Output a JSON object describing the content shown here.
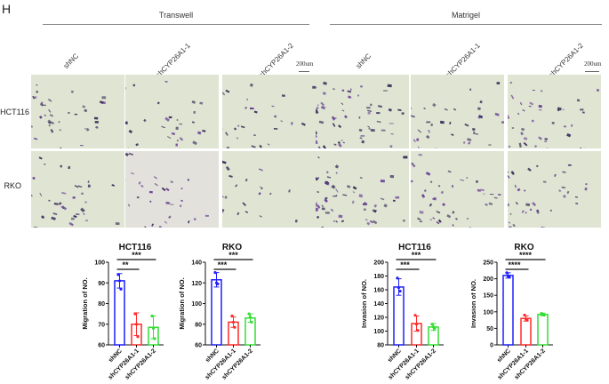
{
  "panel_letter": "H",
  "figure": {
    "sections": [
      {
        "title": "Transwell",
        "columns": [
          "shNC",
          "shCYP26A1-1",
          "shCYP26A1-2"
        ],
        "scale_bar": "200um"
      },
      {
        "title": "Matrigel",
        "columns": [
          "shNC",
          "shCYP26A1-1",
          "shCYP26A1-2"
        ],
        "scale_bar": "200um"
      }
    ],
    "rows": [
      "HCT116",
      "RKO"
    ],
    "stain_colors": {
      "background": "#dfe5d2",
      "cell_dark": "#3b2f5c",
      "cell_purple": "#6a3f96"
    }
  },
  "chart_data": [
    {
      "type": "bar",
      "title": "HCT116",
      "ylabel": "Migration of NO.",
      "xlabel": "",
      "categories": [
        "shNC",
        "shCYP26A1-1",
        "shCYP26A1-2"
      ],
      "values": [
        91,
        70,
        68.5
      ],
      "errors": [
        3.5,
        5.5,
        5.5
      ],
      "points": [
        [
          94,
          91,
          87
        ],
        [
          75,
          70,
          64
        ],
        [
          74,
          68,
          63
        ]
      ],
      "ylim": [
        60,
        100
      ],
      "yticks": [
        60,
        70,
        80,
        90,
        100
      ],
      "colors": [
        "#1f1fff",
        "#ff2a2a",
        "#33dd33"
      ],
      "significance": [
        {
          "from": "shNC",
          "to": "shCYP26A1-1",
          "label": "**"
        },
        {
          "from": "shNC",
          "to": "shCYP26A1-2",
          "label": "***"
        }
      ]
    },
    {
      "type": "bar",
      "title": "RKO",
      "ylabel": "Migration of NO.",
      "xlabel": "",
      "categories": [
        "shNC",
        "shCYP26A1-1",
        "shCYP26A1-2"
      ],
      "values": [
        123,
        82,
        86
      ],
      "errors": [
        7,
        5,
        4
      ],
      "points": [
        [
          130,
          120,
          119
        ],
        [
          88,
          82,
          77
        ],
        [
          90,
          87,
          82
        ]
      ],
      "ylim": [
        60,
        140
      ],
      "yticks": [
        60,
        80,
        100,
        120,
        140
      ],
      "colors": [
        "#1f1fff",
        "#ff2a2a",
        "#33dd33"
      ],
      "significance": [
        {
          "from": "shNC",
          "to": "shCYP26A1-1",
          "label": "***"
        },
        {
          "from": "shNC",
          "to": "shCYP26A1-2",
          "label": "***"
        }
      ]
    },
    {
      "type": "bar",
      "title": "HCT116",
      "ylabel": "Invasion of NO.",
      "xlabel": "",
      "categories": [
        "shNC",
        "shCYP26A1-1",
        "shCYP26A1-2"
      ],
      "values": [
        164,
        111,
        106
      ],
      "errors": [
        12,
        11,
        5
      ],
      "points": [
        [
          177,
          163,
          158
        ],
        [
          123,
          110,
          101
        ],
        [
          110,
          106,
          104
        ]
      ],
      "ylim": [
        80,
        200
      ],
      "yticks": [
        80,
        100,
        120,
        140,
        160,
        180,
        200
      ],
      "colors": [
        "#1f1fff",
        "#ff2a2a",
        "#33dd33"
      ],
      "significance": [
        {
          "from": "shNC",
          "to": "shCYP26A1-1",
          "label": "***"
        },
        {
          "from": "shNC",
          "to": "shCYP26A1-2",
          "label": "***"
        }
      ]
    },
    {
      "type": "bar",
      "title": "RKO",
      "ylabel": "Invasion of NO.",
      "xlabel": "",
      "categories": [
        "shNC",
        "shCYP26A1-1",
        "shCYP26A1-2"
      ],
      "values": [
        210,
        80,
        92
      ],
      "errors": [
        8,
        8,
        4
      ],
      "points": [
        [
          218,
          208,
          205
        ],
        [
          90,
          78,
          75
        ],
        [
          95,
          92,
          90
        ]
      ],
      "ylim": [
        0,
        250
      ],
      "yticks": [
        0,
        50,
        100,
        150,
        200,
        250
      ],
      "colors": [
        "#1f1fff",
        "#ff2a2a",
        "#33dd33"
      ],
      "significance": [
        {
          "from": "shNC",
          "to": "shCYP26A1-1",
          "label": "****"
        },
        {
          "from": "shNC",
          "to": "shCYP26A1-2",
          "label": "****"
        }
      ]
    }
  ]
}
